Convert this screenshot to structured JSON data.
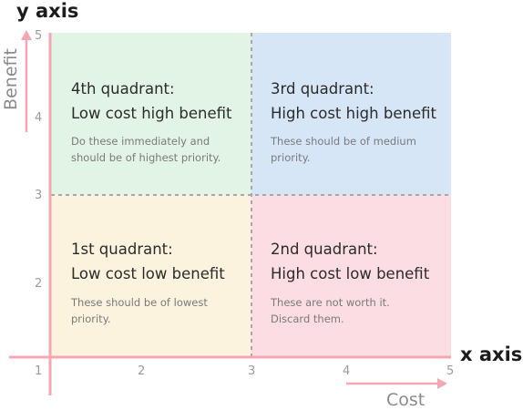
{
  "axes": {
    "y_title": "y axis",
    "x_title": "x axis",
    "y_name": "Benefit",
    "x_name": "Cost",
    "y_ticks": [
      "5",
      "4",
      "3",
      "2",
      "1"
    ],
    "x_ticks": [
      "2",
      "3",
      "4",
      "5"
    ]
  },
  "quadrants": {
    "q4": {
      "title": "4th quadrant:",
      "subtitle": "Low cost high benefit",
      "description": "Do these immediately and should be of highest priority.",
      "color": "#e2f4e6"
    },
    "q3": {
      "title": "3rd quadrant:",
      "subtitle": "High cost high benefit",
      "description": "These should be of medium priority.",
      "color": "#d6e6f7"
    },
    "q1": {
      "title": "1st quadrant:",
      "subtitle": "Low cost low benefit",
      "description": "These should be of lowest priority.",
      "color": "#fbf3de"
    },
    "q2": {
      "title": "2nd quadrant:",
      "subtitle": "High cost low benefit",
      "description": "These are not worth it. Discard them.",
      "color": "#fbdde3"
    }
  },
  "colors": {
    "axis": "#f4a6b4",
    "divider": "#a8a8a8"
  }
}
